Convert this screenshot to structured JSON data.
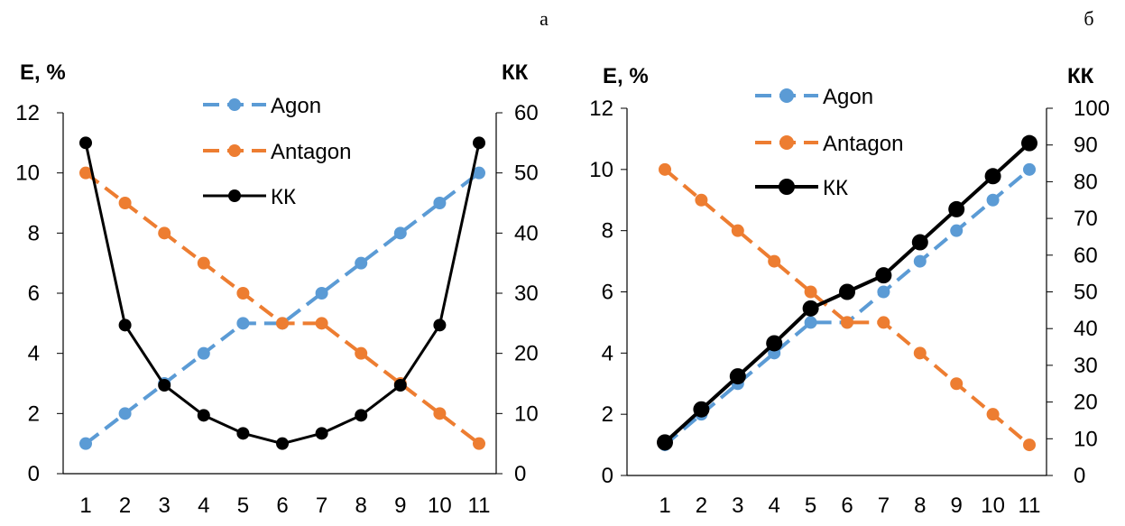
{
  "chart_data": [
    {
      "type": "line",
      "panel_label": "а",
      "x": [
        1,
        2,
        3,
        4,
        5,
        6,
        7,
        8,
        9,
        10,
        11
      ],
      "xtick_labels": [
        "1",
        "2",
        "3",
        "4",
        "5",
        "6",
        "7",
        "8",
        "9",
        "10",
        "11"
      ],
      "ylabel": "E, %",
      "y2label": "КК",
      "ylim": [
        0,
        12
      ],
      "yticks": [
        0,
        2,
        4,
        6,
        8,
        10,
        12
      ],
      "y2lim": [
        0,
        60
      ],
      "y2ticks": [
        0,
        10,
        20,
        30,
        40,
        50,
        60
      ],
      "legend_position": "top-center",
      "series": [
        {
          "name": "Agon",
          "axis": "left",
          "style": "dashed",
          "color": "#5B9BD5",
          "values": [
            1,
            2,
            3,
            4,
            5,
            5,
            6,
            7,
            8,
            9,
            10
          ]
        },
        {
          "name": "Antagon",
          "axis": "left",
          "style": "dashed",
          "color": "#ED7D31",
          "values": [
            10,
            9,
            8,
            7,
            6,
            5,
            5,
            4,
            3,
            2,
            1
          ]
        },
        {
          "name": "КК",
          "axis": "right",
          "style": "solid",
          "color": "#000000",
          "values": [
            55,
            24.7,
            14.7,
            9.7,
            6.7,
            5,
            6.7,
            9.7,
            14.7,
            24.7,
            55
          ]
        }
      ]
    },
    {
      "type": "line",
      "panel_label": "б",
      "x": [
        1,
        2,
        3,
        4,
        5,
        6,
        7,
        8,
        9,
        10,
        11
      ],
      "xtick_labels": [
        "1",
        "2",
        "3",
        "4",
        "5",
        "6",
        "7",
        "8",
        "9",
        "10",
        "11"
      ],
      "ylabel": "E, %",
      "y2label": "КК",
      "ylim": [
        0,
        12
      ],
      "yticks": [
        0,
        2,
        4,
        6,
        8,
        10,
        12
      ],
      "y2lim": [
        0,
        100
      ],
      "y2ticks": [
        0,
        10,
        20,
        30,
        40,
        50,
        60,
        70,
        80,
        90,
        100
      ],
      "legend_position": "top-left",
      "series": [
        {
          "name": "Agon",
          "axis": "left",
          "style": "dashed",
          "color": "#5B9BD5",
          "values": [
            1,
            2,
            3,
            4,
            5,
            5,
            6,
            7,
            8,
            9,
            10
          ]
        },
        {
          "name": "Antagon",
          "axis": "left",
          "style": "dashed",
          "color": "#ED7D31",
          "values": [
            10,
            9,
            8,
            7,
            6,
            5,
            5,
            4,
            3,
            2,
            1
          ]
        },
        {
          "name": "КК",
          "axis": "right",
          "style": "solid",
          "color": "#000000",
          "values": [
            9,
            18,
            27,
            36,
            45.5,
            50,
            54.5,
            63.5,
            72.5,
            81.5,
            90.5
          ]
        }
      ]
    }
  ]
}
